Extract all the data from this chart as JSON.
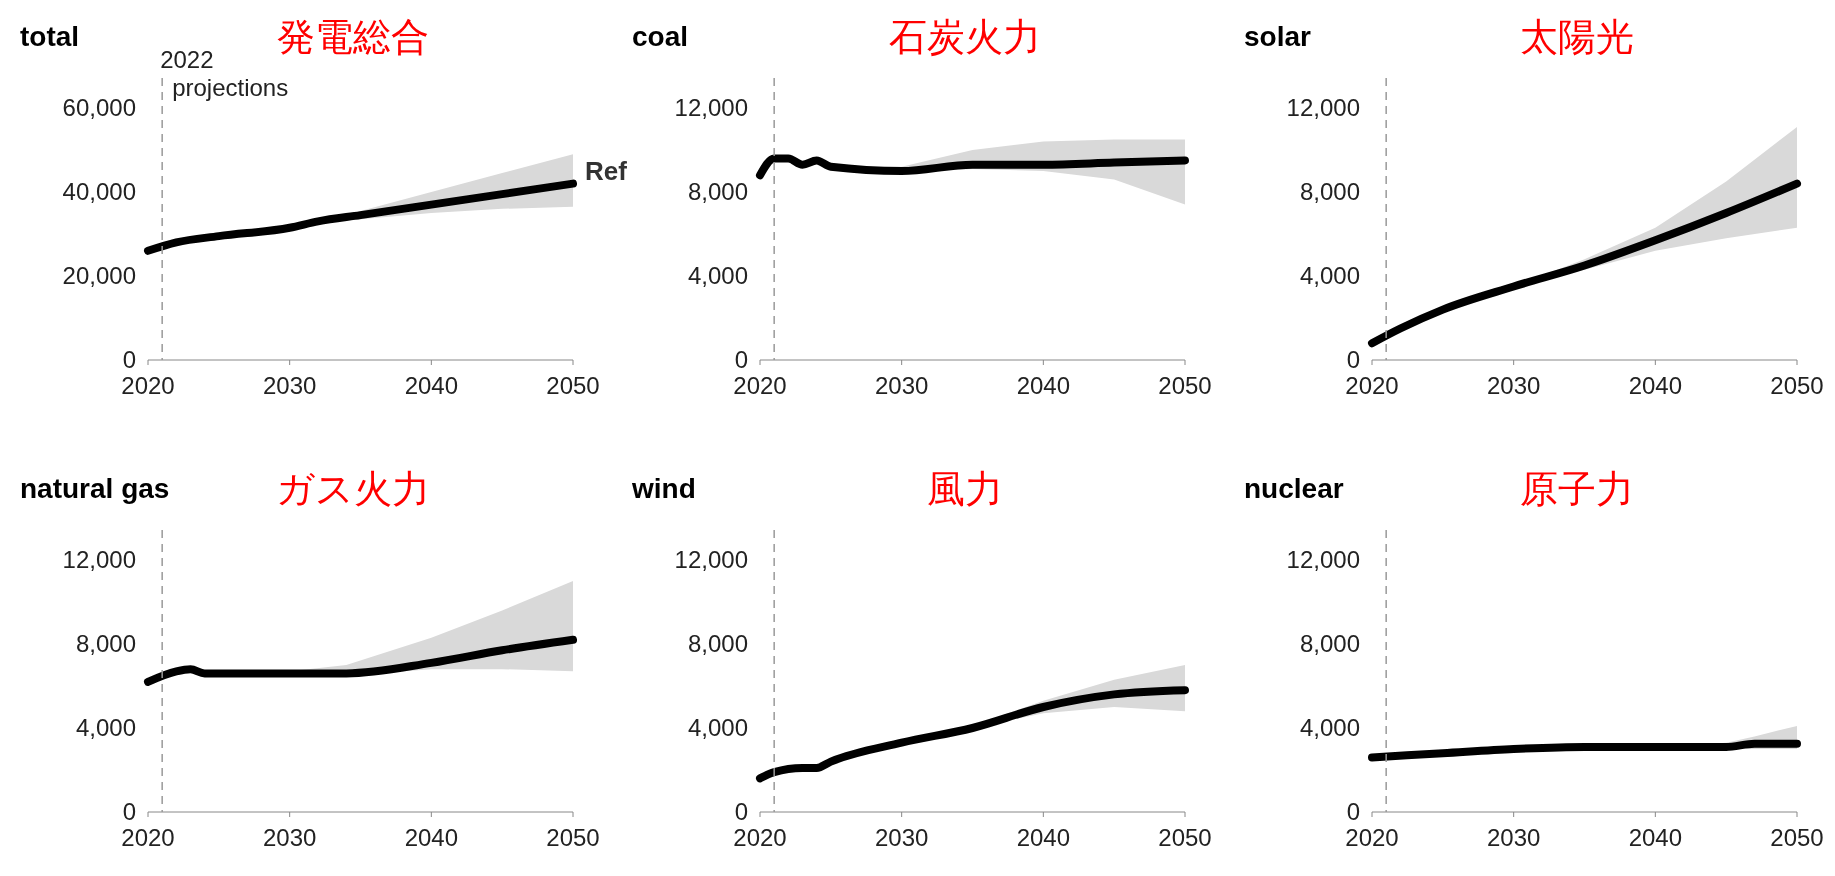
{
  "chart_data": [
    {
      "type": "line",
      "title": "total",
      "subtitle": "発電総合",
      "xlim": [
        2020,
        2050
      ],
      "xticks": [
        2020,
        2030,
        2040,
        2050
      ],
      "ylim": [
        0,
        60000
      ],
      "yticks": [
        {
          "value": 0,
          "label": "0"
        },
        {
          "value": 20000,
          "label": "20,000"
        },
        {
          "value": 40000,
          "label": "40,000"
        },
        {
          "value": 60000,
          "label": "60,000"
        }
      ],
      "ref_lines": [
        {
          "axis": "x",
          "value": 2021,
          "label": "2022 projections",
          "color": "#999999",
          "line_style": "dashed"
        }
      ],
      "series": [
        {
          "name": "Ref",
          "color": "#000000",
          "x": [
            2020,
            2022,
            2025,
            2030,
            2032,
            2035,
            2040,
            2045,
            2050
          ],
          "values": [
            26000,
            28000,
            29500,
            31500,
            33000,
            34500,
            37000,
            39500,
            42000
          ],
          "lower": [
            26000,
            28000,
            29500,
            31500,
            32500,
            33500,
            35000,
            36000,
            36500
          ],
          "upper": [
            26000,
            28000,
            29500,
            31500,
            33000,
            35500,
            40000,
            44500,
            49000
          ]
        }
      ]
    },
    {
      "type": "line",
      "title": "coal",
      "subtitle": "石炭火力",
      "xlim": [
        2020,
        2050
      ],
      "xticks": [
        2020,
        2030,
        2040,
        2050
      ],
      "ylim": [
        0,
        12000
      ],
      "yticks": [
        {
          "value": 0,
          "label": "0"
        },
        {
          "value": 4000,
          "label": "4,000"
        },
        {
          "value": 8000,
          "label": "8,000"
        },
        {
          "value": 12000,
          "label": "12,000"
        }
      ],
      "ref_lines": [
        {
          "axis": "x",
          "value": 2021,
          "color": "#999999",
          "line_style": "dashed"
        }
      ],
      "series": [
        {
          "color": "#000000",
          "x": [
            2020,
            2021,
            2022,
            2023,
            2024,
            2025,
            2030,
            2035,
            2040,
            2045,
            2050
          ],
          "values": [
            8800,
            9600,
            9600,
            9300,
            9500,
            9200,
            9000,
            9300,
            9300,
            9400,
            9500
          ],
          "lower": [
            8800,
            9600,
            9600,
            9300,
            9500,
            9200,
            8900,
            9100,
            9000,
            8600,
            7400
          ],
          "upper": [
            8800,
            9600,
            9600,
            9300,
            9500,
            9200,
            9200,
            10000,
            10400,
            10500,
            10500
          ]
        }
      ]
    },
    {
      "type": "line",
      "title": "solar",
      "subtitle": "太陽光",
      "xlim": [
        2020,
        2050
      ],
      "xticks": [
        2020,
        2030,
        2040,
        2050
      ],
      "ylim": [
        0,
        12000
      ],
      "yticks": [
        {
          "value": 0,
          "label": "0"
        },
        {
          "value": 4000,
          "label": "4,000"
        },
        {
          "value": 8000,
          "label": "8,000"
        },
        {
          "value": 12000,
          "label": "12,000"
        }
      ],
      "ref_lines": [
        {
          "axis": "x",
          "value": 2021,
          "color": "#999999",
          "line_style": "dashed"
        }
      ],
      "series": [
        {
          "color": "#000000",
          "x": [
            2020,
            2022,
            2025,
            2030,
            2035,
            2040,
            2045,
            2050
          ],
          "values": [
            800,
            1500,
            2400,
            3500,
            4500,
            5700,
            7000,
            8400
          ],
          "lower": [
            800,
            1500,
            2400,
            3500,
            4300,
            5200,
            5800,
            6300
          ],
          "upper": [
            800,
            1500,
            2400,
            3500,
            4800,
            6300,
            8500,
            11100
          ]
        }
      ]
    },
    {
      "type": "line",
      "title": "natural gas",
      "subtitle": "ガス火力",
      "xlim": [
        2020,
        2050
      ],
      "xticks": [
        2020,
        2030,
        2040,
        2050
      ],
      "ylim": [
        0,
        12000
      ],
      "yticks": [
        {
          "value": 0,
          "label": "0"
        },
        {
          "value": 4000,
          "label": "4,000"
        },
        {
          "value": 8000,
          "label": "8,000"
        },
        {
          "value": 12000,
          "label": "12,000"
        }
      ],
      "ref_lines": [
        {
          "axis": "x",
          "value": 2021,
          "color": "#999999",
          "line_style": "dashed"
        }
      ],
      "series": [
        {
          "color": "#000000",
          "x": [
            2020,
            2022,
            2023,
            2024,
            2030,
            2034,
            2040,
            2045,
            2050
          ],
          "values": [
            6200,
            6700,
            6800,
            6600,
            6600,
            6600,
            7100,
            7700,
            8200
          ],
          "lower": [
            6200,
            6700,
            6800,
            6600,
            6600,
            6500,
            6800,
            6800,
            6700
          ],
          "upper": [
            6200,
            6700,
            6800,
            6600,
            6700,
            7000,
            8300,
            9600,
            11000
          ]
        }
      ]
    },
    {
      "type": "line",
      "title": "wind",
      "subtitle": "風力",
      "xlim": [
        2020,
        2050
      ],
      "xticks": [
        2020,
        2030,
        2040,
        2050
      ],
      "ylim": [
        0,
        12000
      ],
      "yticks": [
        {
          "value": 0,
          "label": "0"
        },
        {
          "value": 4000,
          "label": "4,000"
        },
        {
          "value": 8000,
          "label": "8,000"
        },
        {
          "value": 12000,
          "label": "12,000"
        }
      ],
      "ref_lines": [
        {
          "axis": "x",
          "value": 2021,
          "color": "#999999",
          "line_style": "dashed"
        }
      ],
      "series": [
        {
          "color": "#000000",
          "x": [
            2020,
            2021,
            2023,
            2024,
            2025,
            2030,
            2035,
            2040,
            2045,
            2050
          ],
          "values": [
            1600,
            1900,
            2100,
            2100,
            2400,
            3300,
            4000,
            5000,
            5600,
            5800
          ],
          "lower": [
            1600,
            1900,
            2100,
            2100,
            2400,
            3300,
            4000,
            4700,
            5000,
            4800
          ],
          "upper": [
            1600,
            1900,
            2100,
            2100,
            2400,
            3300,
            4100,
            5300,
            6300,
            7000
          ]
        }
      ]
    },
    {
      "type": "line",
      "title": "nuclear",
      "subtitle": "原子力",
      "xlim": [
        2020,
        2050
      ],
      "xticks": [
        2020,
        2030,
        2040,
        2050
      ],
      "ylim": [
        0,
        12000
      ],
      "yticks": [
        {
          "value": 0,
          "label": "0"
        },
        {
          "value": 4000,
          "label": "4,000"
        },
        {
          "value": 8000,
          "label": "8,000"
        },
        {
          "value": 12000,
          "label": "12,000"
        }
      ],
      "ref_lines": [
        {
          "axis": "x",
          "value": 2021,
          "color": "#999999",
          "line_style": "dashed"
        }
      ],
      "series": [
        {
          "color": "#000000",
          "x": [
            2020,
            2025,
            2030,
            2035,
            2040,
            2045,
            2047,
            2050
          ],
          "values": [
            2600,
            2800,
            3000,
            3100,
            3100,
            3100,
            3250,
            3250
          ],
          "lower": [
            2600,
            2800,
            3000,
            3100,
            3100,
            3000,
            3000,
            3000
          ],
          "upper": [
            2600,
            2800,
            3000,
            3100,
            3100,
            3300,
            3600,
            4100
          ]
        }
      ]
    }
  ]
}
